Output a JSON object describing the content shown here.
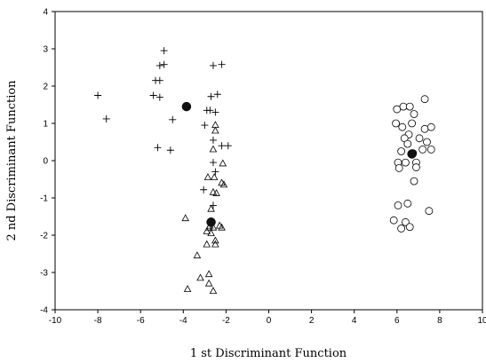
{
  "chart_data": {
    "type": "scatter",
    "title": "",
    "xlabel": "1 st Discriminant Function",
    "ylabel": "2 nd Discriminant Function",
    "xlim": [
      -10,
      10
    ],
    "ylim": [
      -4,
      4
    ],
    "x_ticks": [
      "-10",
      "-8",
      "-6",
      "-4",
      "-2",
      "0",
      "2",
      "4",
      "6",
      "8",
      "10"
    ],
    "y_ticks": [
      "4",
      "3",
      "2",
      "1",
      "0",
      "-1",
      "-2",
      "-3",
      "-4"
    ],
    "grid": false,
    "legend": "none",
    "colors": {
      "marker": "#000000",
      "axis": "#000000",
      "background": "#ffffff"
    },
    "series": [
      {
        "marker": "plus",
        "points": [
          [
            -4.9,
            2.95
          ],
          [
            -5.1,
            2.55
          ],
          [
            -4.9,
            2.58
          ],
          [
            -5.3,
            2.15
          ],
          [
            -5.1,
            2.15
          ],
          [
            -5.4,
            1.75
          ],
          [
            -5.1,
            1.7
          ],
          [
            -8.0,
            1.75
          ],
          [
            -7.6,
            1.12
          ],
          [
            -4.5,
            1.1
          ],
          [
            -5.2,
            0.35
          ],
          [
            -4.6,
            0.28
          ],
          [
            -2.6,
            2.55
          ],
          [
            -2.2,
            2.58
          ],
          [
            -2.7,
            1.72
          ],
          [
            -2.4,
            1.78
          ],
          [
            -2.75,
            1.35
          ],
          [
            -2.9,
            1.35
          ],
          [
            -2.5,
            1.3
          ],
          [
            -3.0,
            0.95
          ],
          [
            -2.6,
            0.55
          ],
          [
            -2.2,
            0.4
          ],
          [
            -1.9,
            0.4
          ],
          [
            -2.6,
            -0.05
          ],
          [
            -2.5,
            -0.3
          ],
          [
            -3.05,
            -0.78
          ],
          [
            -2.6,
            -1.2
          ]
        ]
      },
      {
        "marker": "triangle",
        "points": [
          [
            -2.5,
            0.95
          ],
          [
            -2.5,
            0.8
          ],
          [
            -2.6,
            0.3
          ],
          [
            -2.15,
            -0.08
          ],
          [
            -2.85,
            -0.45
          ],
          [
            -2.55,
            -0.45
          ],
          [
            -2.2,
            -0.6
          ],
          [
            -2.1,
            -0.65
          ],
          [
            -2.6,
            -0.85
          ],
          [
            -2.45,
            -0.88
          ],
          [
            -2.7,
            -1.3
          ],
          [
            -3.9,
            -1.55
          ],
          [
            -2.75,
            -1.75
          ],
          [
            -2.8,
            -1.8
          ],
          [
            -2.6,
            -1.8
          ],
          [
            -2.3,
            -1.75
          ],
          [
            -2.2,
            -1.8
          ],
          [
            -2.5,
            -2.15
          ],
          [
            -2.5,
            -2.25
          ],
          [
            -2.9,
            -2.25
          ],
          [
            -3.35,
            -2.55
          ],
          [
            -2.8,
            -3.05
          ],
          [
            -3.2,
            -3.15
          ],
          [
            -2.8,
            -3.3
          ],
          [
            -3.8,
            -3.45
          ],
          [
            -2.6,
            -3.5
          ],
          [
            -2.9,
            -1.9
          ],
          [
            -2.7,
            -1.95
          ]
        ]
      },
      {
        "marker": "circle",
        "points": [
          [
            7.3,
            1.65
          ],
          [
            6.0,
            1.38
          ],
          [
            6.3,
            1.45
          ],
          [
            6.6,
            1.45
          ],
          [
            6.8,
            1.25
          ],
          [
            5.95,
            1.0
          ],
          [
            6.7,
            1.0
          ],
          [
            7.3,
            0.85
          ],
          [
            7.6,
            0.9
          ],
          [
            6.25,
            0.9
          ],
          [
            6.55,
            0.7
          ],
          [
            6.35,
            0.6
          ],
          [
            7.05,
            0.6
          ],
          [
            7.4,
            0.5
          ],
          [
            6.5,
            0.45
          ],
          [
            6.2,
            0.25
          ],
          [
            7.2,
            0.3
          ],
          [
            7.6,
            0.3
          ],
          [
            6.75,
            0.2
          ],
          [
            6.4,
            -0.05
          ],
          [
            6.05,
            -0.05
          ],
          [
            6.9,
            -0.05
          ],
          [
            6.1,
            -0.2
          ],
          [
            6.9,
            -0.18
          ],
          [
            6.8,
            -0.55
          ],
          [
            6.05,
            -1.2
          ],
          [
            6.5,
            -1.15
          ],
          [
            7.5,
            -1.35
          ],
          [
            5.85,
            -1.6
          ],
          [
            6.4,
            -1.65
          ],
          [
            6.2,
            -1.82
          ],
          [
            6.6,
            -1.78
          ]
        ]
      },
      {
        "marker": "centroid",
        "points": [
          [
            -3.85,
            1.45
          ],
          [
            -2.7,
            -1.65
          ],
          [
            6.7,
            0.18
          ]
        ]
      }
    ]
  }
}
